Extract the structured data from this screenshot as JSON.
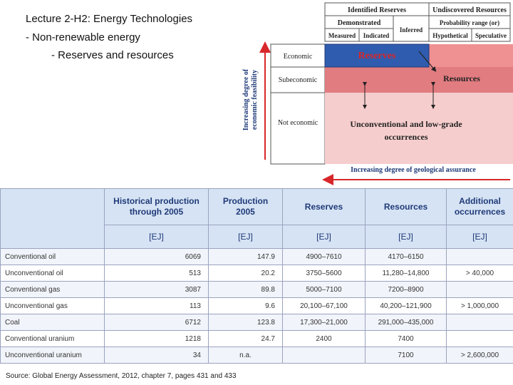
{
  "slide": {
    "title_bold": "Lecture 2-H2",
    "title_rest": ": Energy Technologies",
    "bullet1": "- Non-renewable energy",
    "bullet2": "- Reserves and resources",
    "source": "Source: Global Energy Assessment, 2012, chapter 7, pages 431 and 433"
  },
  "diagram": {
    "identified": "Identified Reserves",
    "undiscovered": "Undiscovered Resources",
    "demonstrated": "Demonstrated",
    "inferred": "Inferred",
    "probability": "Probability range (or)",
    "measured": "Measured",
    "indicated": "Indicated",
    "hypothetical": "Hypothetical",
    "speculative": "Speculative",
    "economic": "Economic",
    "subeconomic": "Subeconomic",
    "not_economic": "Not economic",
    "reserves": "Reserves",
    "resources": "Resources",
    "unconventional_line1": "Unconventional and low-grade",
    "unconventional_line2": "occurrences",
    "yaxis_line1": "Increasing degree of",
    "yaxis_line2": "economic feasibility",
    "xaxis": "Increasing degree of geological assurance",
    "colors": {
      "reserves_blue": "#2f5cae",
      "resources_red": "#ef9092",
      "sub_red": "#e17c80",
      "lowgrade_pink": "#f6cdcd",
      "arrow_red": "#d8272a",
      "axis_blue": "#1f3a78"
    }
  },
  "table": {
    "headers": [
      "Historical production through 2005",
      "Production 2005",
      "Reserves",
      "Resources",
      "Additional occurrences"
    ],
    "units": [
      "[EJ]",
      "[EJ]",
      "[EJ]",
      "[EJ]",
      "[EJ]"
    ],
    "rows": [
      [
        "Conventional oil",
        "6069",
        "147.9",
        "4900–7610",
        "4170–6150",
        ""
      ],
      [
        "Unconventional oil",
        "513",
        "20.2",
        "3750–5600",
        "11,280–14,800",
        "> 40,000"
      ],
      [
        "Conventional gas",
        "3087",
        "89.8",
        "5000–7100",
        "7200–8900",
        ""
      ],
      [
        "Unconventional gas",
        "113",
        "9.6",
        "20,100–67,100",
        "40,200–121,900",
        "> 1,000,000"
      ],
      [
        "Coal",
        "6712",
        "123.8",
        "17,300–21,000",
        "291,000–435,000",
        ""
      ],
      [
        "Conventional uranium",
        "1218",
        "24.7",
        "2400",
        "7400",
        ""
      ],
      [
        "Unconventional uranium",
        "34",
        "n.a.",
        "",
        "7100",
        "> 2,600,000"
      ]
    ]
  }
}
